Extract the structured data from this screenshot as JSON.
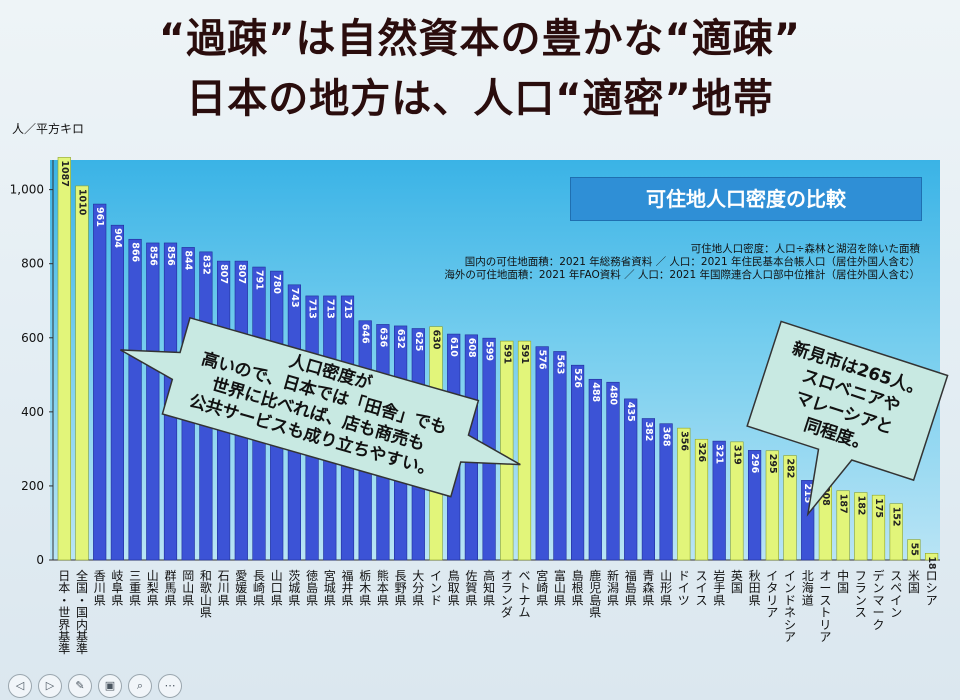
{
  "slide": {
    "title_line1": "“過疎”は自然資本の豊かな“適疎”",
    "title_line2": "日本の地方は、人口“適密”地帯",
    "unit_label": "人／平方キロ"
  },
  "notes": {
    "definition": "可住地人口密度：人口÷森林と湖沼を除いた面積",
    "domestic_source": "国内の可住地面積：2021 年総務省資料 ／ 人口：2021 年住民基本台帳人口（居住外国人含む）",
    "overseas_source": "海外の可住地面積：2021 年FAO資料 ／ 人口：2021 年国際連合人口部中位推計（居住外国人含む）"
  },
  "callouts": {
    "left": [
      "人口密度が",
      "高いので、日本では「田舎」でも",
      "世界に比べれば、店も商売も",
      "公共サービスも成り立ちやすい。"
    ],
    "right": [
      "新見市は265人。",
      "スロベニアや",
      "マレーシアと",
      "同程度。"
    ]
  },
  "toolbar": {
    "buttons": [
      {
        "name": "prev-slide-button",
        "glyph": "◁"
      },
      {
        "name": "next-slide-button",
        "glyph": "▷"
      },
      {
        "name": "pen-tool-button",
        "glyph": "✎"
      },
      {
        "name": "slides-view-button",
        "glyph": "▣"
      },
      {
        "name": "zoom-button",
        "glyph": "⌕"
      },
      {
        "name": "more-options-button",
        "glyph": "⋯"
      }
    ]
  },
  "colors": {
    "japan_bar": "#3c53d6",
    "highlight_bar": "#e2f57a",
    "plot_top": "#3ab3e6",
    "title_box": "#2f8fd6"
  },
  "chart_data": {
    "type": "bar",
    "title": "可住地人口密度の比較",
    "ylabel": "人／平方キロ",
    "ylim": [
      0,
      1080
    ],
    "yticks": [
      0,
      200,
      400,
      600,
      800,
      "1,000"
    ],
    "grid": false,
    "categories": [
      "日本・世界基準",
      "全国・国内基準",
      "香川県",
      "岐阜県",
      "三重県",
      "山梨県",
      "群馬県",
      "岡山県",
      "和歌山県",
      "石川県",
      "愛媛県",
      "長崎県",
      "山口県",
      "茨城県",
      "徳島県",
      "宮城県",
      "福井県",
      "栃木県",
      "熊本県",
      "長野県",
      "大分県",
      "インド",
      "鳥取県",
      "佐賀県",
      "高知県",
      "オランダ",
      "ベトナム",
      "宮崎県",
      "富山県",
      "島根県",
      "鹿児島県",
      "新潟県",
      "福島県",
      "青森県",
      "山形県",
      "ドイツ",
      "スイス",
      "岩手県",
      "英国",
      "秋田県",
      "イタリア",
      "インドネシア",
      "北海道",
      "オーストリア",
      "中国",
      "フランス",
      "デンマーク",
      "スペイン",
      "米国",
      "ロシア"
    ],
    "values": [
      1087,
      1010,
      961,
      904,
      866,
      856,
      856,
      844,
      832,
      807,
      807,
      791,
      780,
      743,
      713,
      713,
      713,
      646,
      636,
      632,
      625,
      630,
      610,
      608,
      599,
      591,
      591,
      576,
      563,
      526,
      488,
      480,
      435,
      382,
      368,
      356,
      326,
      321,
      319,
      296,
      295,
      282,
      215,
      208,
      187,
      182,
      175,
      152,
      55,
      18
    ],
    "highlight": [
      true,
      true,
      false,
      false,
      false,
      false,
      false,
      false,
      false,
      false,
      false,
      false,
      false,
      false,
      false,
      false,
      false,
      false,
      false,
      false,
      false,
      true,
      false,
      false,
      false,
      true,
      true,
      false,
      false,
      false,
      false,
      false,
      false,
      false,
      false,
      true,
      true,
      false,
      true,
      false,
      true,
      true,
      false,
      true,
      true,
      true,
      true,
      true,
      true,
      true
    ]
  }
}
